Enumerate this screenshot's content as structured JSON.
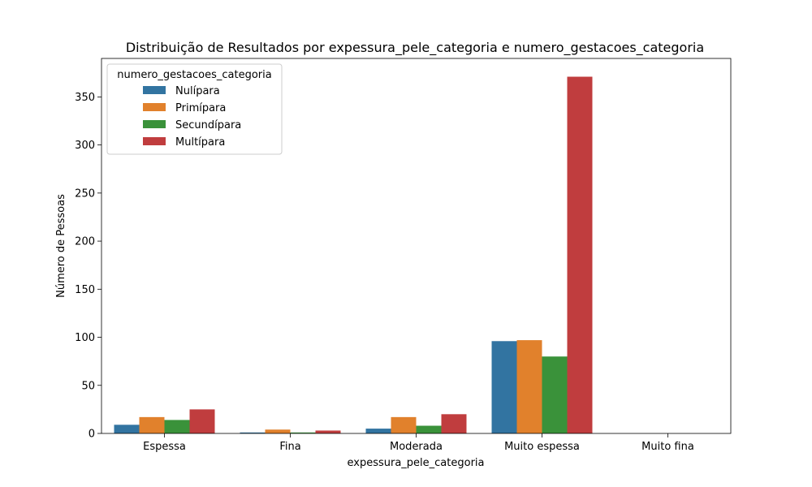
{
  "chart_data": {
    "type": "bar",
    "title": "Distribuição de Resultados por expessura_pele_categoria e numero_gestacoes_categoria",
    "xlabel": "expessura_pele_categoria",
    "ylabel": "Número de Pessoas",
    "categories": [
      "Espessa",
      "Fina",
      "Moderada",
      "Muito espessa",
      "Muito fina"
    ],
    "series": [
      {
        "name": "Nulípara",
        "color": "#3274a1",
        "values": [
          9,
          1,
          5,
          96,
          0
        ]
      },
      {
        "name": "Primípara",
        "color": "#e1812c",
        "values": [
          17,
          4,
          17,
          97,
          0
        ]
      },
      {
        "name": "Secundípara",
        "color": "#3a923a",
        "values": [
          14,
          1,
          8,
          80,
          0
        ]
      },
      {
        "name": "Multípara",
        "color": "#c03d3e",
        "values": [
          25,
          3,
          20,
          371,
          0
        ]
      }
    ],
    "ylim": [
      0,
      390
    ],
    "yticks": [
      0,
      50,
      100,
      150,
      200,
      250,
      300,
      350
    ],
    "legend": {
      "title": "numero_gestacoes_categoria",
      "placement": "top-left"
    },
    "grid": false
  }
}
